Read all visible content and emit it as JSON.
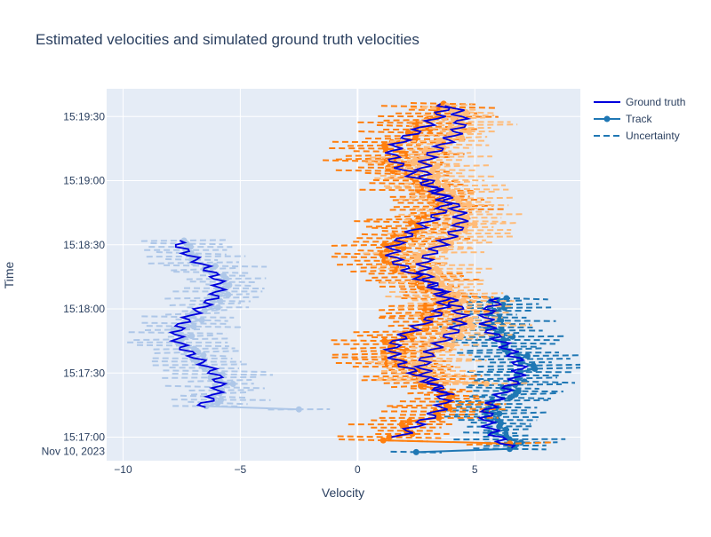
{
  "chart_data": {
    "type": "line",
    "title": "Estimated velocities and simulated ground truth velocities",
    "xlabel": "Velocity",
    "ylabel": "Time",
    "xlim": [
      -10.7,
      9.5
    ],
    "ylim": [
      "2023-11-10 15:16:49",
      "2023-11-10 15:19:43"
    ],
    "x_ticks": [
      {
        "value": -10,
        "label": "−10"
      },
      {
        "value": -5,
        "label": "−5"
      },
      {
        "value": 0,
        "label": "0"
      },
      {
        "value": 5,
        "label": "5"
      }
    ],
    "y_ticks": [
      {
        "value": "2023-11-10 15:17:00",
        "label": "15:17:00",
        "sublabel": "Nov 10, 2023"
      },
      {
        "value": "2023-11-10 15:17:30",
        "label": "15:17:30"
      },
      {
        "value": "2023-11-10 15:18:00",
        "label": "15:18:00"
      },
      {
        "value": "2023-11-10 15:18:30",
        "label": "15:18:30"
      },
      {
        "value": "2023-11-10 15:19:00",
        "label": "15:19:00"
      },
      {
        "value": "2023-11-10 15:19:30",
        "label": "15:19:30"
      }
    ],
    "grid": true,
    "legend_position": "top-right",
    "legend": [
      {
        "label": "Ground truth",
        "style": "line",
        "color": "#0000dd"
      },
      {
        "label": "Track",
        "style": "line-marker",
        "color": "#1f77b4"
      },
      {
        "label": "Uncertainty",
        "style": "dashed",
        "color": "#1f77b4"
      }
    ],
    "colors": {
      "ground_truth": "#0000dd",
      "track_blue": "#1f77b4",
      "track_light_blue": "#aec7e8",
      "track_orange": "#ff7f0e",
      "track_light_orange": "#ffbb78",
      "plot_bg": "#e5ecf6",
      "grid": "#ffffff"
    },
    "ground_truth": [
      {
        "start": "2023-11-10 15:16:55",
        "end": "2023-11-10 15:18:05",
        "mean": 6.2,
        "amp": 0.7,
        "ripple": 0.35
      },
      {
        "start": "2023-11-10 15:17:14",
        "end": "2023-11-10 15:18:32",
        "mean": -6.8,
        "amp": 0.9,
        "ripple": 0.3
      },
      {
        "start": "2023-11-10 15:17:00",
        "end": "2023-11-10 15:19:36",
        "mean": 2.6,
        "amp": 1.1,
        "ripple": 0.35
      },
      {
        "start": "2023-11-10 15:17:20",
        "end": "2023-11-10 15:19:35",
        "mean": 3.6,
        "amp": 0.8,
        "ripple": 0.35
      }
    ],
    "tracks": [
      {
        "color_key": "track_blue",
        "start": "2023-11-10 15:16:53",
        "end": "2023-11-10 15:18:05",
        "mean": 6.4,
        "amp": 0.7,
        "noise": 0.55,
        "unc_x": 1.9,
        "jump_from": 2.5
      },
      {
        "color_key": "track_light_blue",
        "start": "2023-11-10 15:17:13",
        "end": "2023-11-10 15:18:32",
        "mean": -6.6,
        "amp": 0.9,
        "noise": 0.5,
        "unc_x": 1.7,
        "jump_from": -2.5
      },
      {
        "color_key": "track_orange",
        "start": "2023-11-10 15:16:57",
        "end": "2023-11-10 15:19:36",
        "mean": 2.5,
        "amp": 1.0,
        "noise": 0.6,
        "unc_x": 2.0,
        "jump_from": 6.5
      },
      {
        "color_key": "track_light_orange",
        "start": "2023-11-10 15:17:25",
        "end": "2023-11-10 15:19:35",
        "mean": 3.7,
        "amp": 0.8,
        "noise": 0.6,
        "unc_x": 2.1,
        "jump_from": 5.5
      }
    ]
  }
}
